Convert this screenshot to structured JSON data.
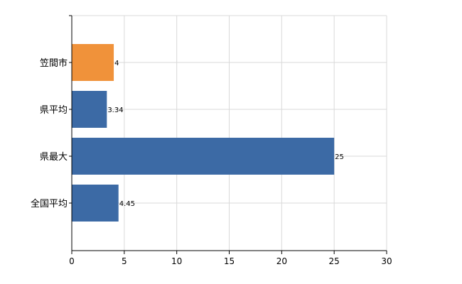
{
  "chart_data": {
    "type": "bar",
    "orientation": "horizontal",
    "categories": [
      "笠間市",
      "県平均",
      "県最大",
      "全国平均"
    ],
    "values": [
      4,
      3.34,
      25,
      4.45
    ],
    "data_labels": [
      "4",
      "3.34",
      "25",
      "4.45"
    ],
    "highlight_index": 0,
    "xlim": [
      0,
      30
    ],
    "xticks": [
      0,
      5,
      10,
      15,
      20,
      25,
      30
    ],
    "grid": true,
    "title": "",
    "xlabel": "",
    "ylabel": ""
  },
  "colors": {
    "highlight": "#F0923A",
    "bar": "#3C6AA5",
    "grid": "#D9D9D9",
    "axis": "#000000"
  }
}
